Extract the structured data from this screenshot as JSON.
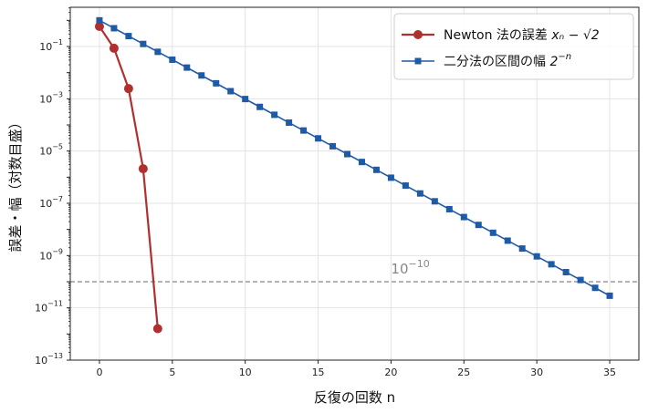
{
  "chart_data": {
    "type": "line",
    "xlabel": "反復の回数 n",
    "ylabel": "誤差・幅（対数目盛）",
    "xlim": [
      -2,
      37
    ],
    "ylim_log10": [
      -13,
      0.5
    ],
    "yscale": "log",
    "grid": true,
    "legend_placement": "top-right",
    "x_ticks": [
      0,
      5,
      10,
      15,
      20,
      25,
      30,
      35
    ],
    "y_ticks_exp": [
      -1,
      -3,
      -5,
      -7,
      -9,
      -11,
      -13
    ],
    "series": [
      {
        "name": "Newton 法の誤差 x_n − √2",
        "legend_text": "Newton 法の誤差 ",
        "legend_math": "xₙ − √2",
        "color": "#b03030",
        "marker": "circle",
        "x": [
          0,
          1,
          2,
          3,
          4
        ],
        "y": [
          0.586,
          0.0858,
          0.00245,
          2.1e-06,
          1.6e-12
        ]
      },
      {
        "name": "二分法の区間の幅 2^−n",
        "legend_text": "二分法の区間の幅 ",
        "legend_math": "2",
        "legend_sup": "−n",
        "color": "#1f5aa6",
        "marker": "square",
        "x": [
          0,
          1,
          2,
          3,
          4,
          5,
          6,
          7,
          8,
          9,
          10,
          11,
          12,
          13,
          14,
          15,
          16,
          17,
          18,
          19,
          20,
          21,
          22,
          23,
          24,
          25,
          26,
          27,
          28,
          29,
          30,
          31,
          32,
          33,
          34,
          35
        ],
        "y": "2^-n"
      }
    ],
    "reference_line": {
      "y": 1e-10,
      "color": "#888888",
      "style": "dashed",
      "label_base": "10",
      "label_exp": "−10"
    }
  }
}
